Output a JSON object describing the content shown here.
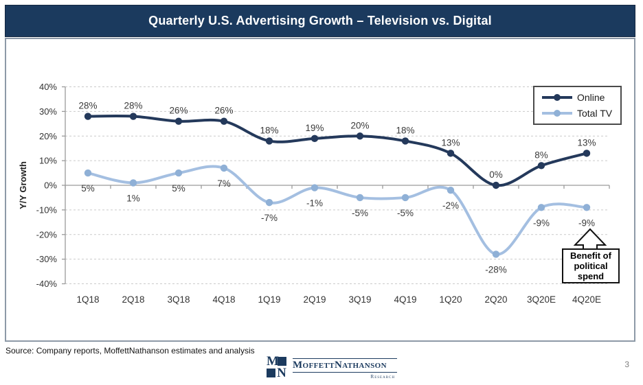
{
  "header": {
    "title": "Quarterly U.S. Advertising Growth – Television vs. Digital"
  },
  "chart_data": {
    "type": "line",
    "title": "Quarterly U.S. Advertising Growth – Television vs. Digital",
    "xlabel": "",
    "ylabel": "Y/Y Growth",
    "ylim": [
      -40,
      40
    ],
    "ytick_step": 10,
    "ytick_suffix": "%",
    "grid": "horizontal-dashed",
    "legend_position": "top-right",
    "smooth_lines": true,
    "categories": [
      "1Q18",
      "2Q18",
      "3Q18",
      "4Q18",
      "1Q19",
      "2Q19",
      "3Q19",
      "4Q19",
      "1Q20",
      "2Q20",
      "3Q20E",
      "4Q20E"
    ],
    "series": [
      {
        "name": "Online",
        "values": [
          28,
          28,
          26,
          26,
          18,
          19,
          20,
          18,
          13,
          0,
          8,
          13
        ],
        "color": "#24395b",
        "marker_color": "#24395b",
        "label_position": "above"
      },
      {
        "name": "Total TV",
        "values": [
          5,
          1,
          5,
          7,
          -7,
          -1,
          -5,
          -5,
          -2,
          -28,
          -9,
          -9
        ],
        "color": "#a4bfe1",
        "marker_color": "#8fb0d6",
        "label_position": "below"
      }
    ],
    "annotation": {
      "text": "Benefit of political spend",
      "target_category": "4Q20E",
      "target_series": "Total TV"
    }
  },
  "footer": {
    "source": "Source: Company reports, MoffettNathanson estimates and analysis",
    "page_number": "3"
  },
  "logo": {
    "letter_m": "M",
    "letter_n": "N",
    "wordmark": "MoffettNathanson",
    "subtext": "Research"
  },
  "colors": {
    "header_navy": "#1b3a5e",
    "online_line": "#24395b",
    "tv_line": "#a4bfe1",
    "axis_gray": "#9a9a9a",
    "gridline_gray": "#c9c9c9",
    "label_gray": "#3a3a3a"
  }
}
